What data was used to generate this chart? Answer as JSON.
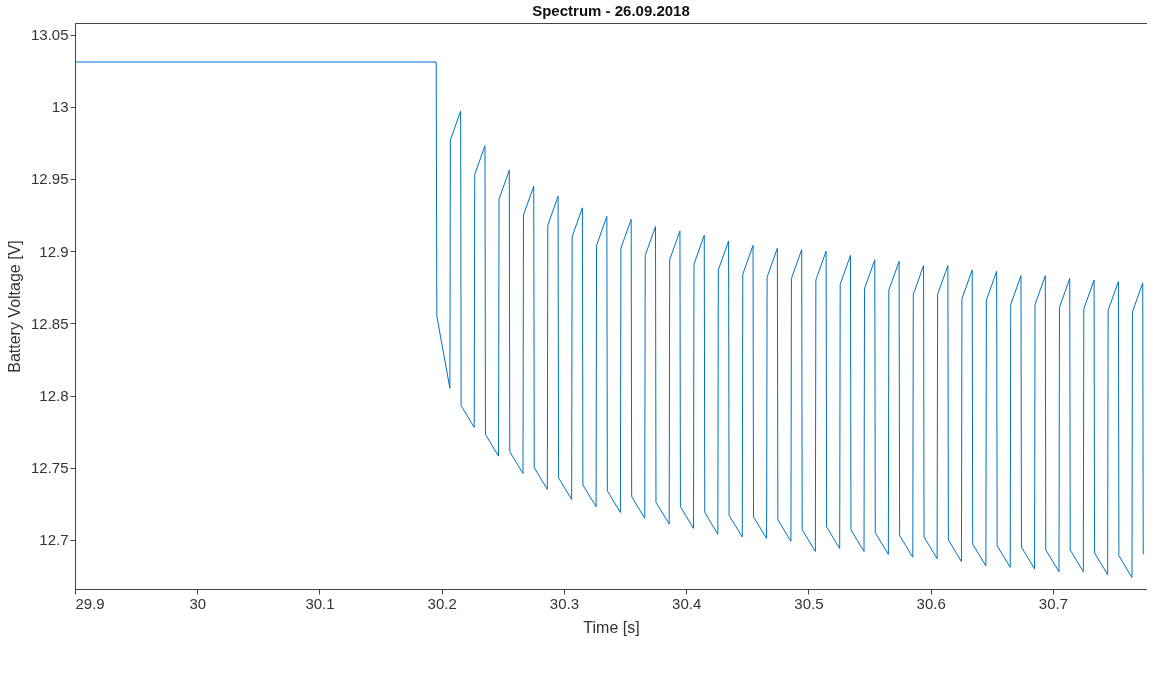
{
  "chart_data": {
    "type": "line",
    "title": "Spectrum  -  26.09.2018",
    "xlabel": "Time [s]",
    "ylabel": "Battery Voltage [V]",
    "xlim": [
      29.9,
      30.777
    ],
    "ylim": [
      12.666,
      13.058
    ],
    "xticks": [
      29.9,
      30,
      30.1,
      30.2,
      30.3,
      30.4,
      30.5,
      30.6,
      30.7
    ],
    "yticks": [
      12.7,
      12.75,
      12.8,
      12.85,
      12.9,
      12.95,
      13,
      13.05
    ],
    "series": [
      {
        "color": "#0072bd",
        "x": [
          29.9,
          30.0,
          30.1,
          30.19,
          30.1955,
          30.196,
          30.2067,
          30.2071,
          30.2155,
          30.2159,
          30.2266,
          30.227,
          30.2354,
          30.2358,
          30.2465,
          30.2469,
          30.2553,
          30.2557,
          30.2665,
          30.2669,
          30.2753,
          30.2757,
          30.2864,
          30.2868,
          30.2952,
          30.2956,
          30.3063,
          30.3067,
          30.3151,
          30.3155,
          30.3263,
          30.3267,
          30.3351,
          30.3355,
          30.3462,
          30.3466,
          30.355,
          30.3554,
          30.3661,
          30.3665,
          30.3749,
          30.3753,
          30.3861,
          30.3865,
          30.3949,
          30.3953,
          30.406,
          30.4064,
          30.4148,
          30.4152,
          30.4259,
          30.4263,
          30.4347,
          30.4351,
          30.4459,
          30.4463,
          30.4547,
          30.4551,
          30.4658,
          30.4662,
          30.4746,
          30.475,
          30.4857,
          30.4861,
          30.4945,
          30.4949,
          30.5057,
          30.5061,
          30.5145,
          30.5149,
          30.5256,
          30.526,
          30.5344,
          30.5348,
          30.5455,
          30.5459,
          30.5543,
          30.5547,
          30.5654,
          30.5658,
          30.5742,
          30.5746,
          30.5854,
          30.5858,
          30.5942,
          30.5946,
          30.6053,
          30.6057,
          30.6141,
          30.6145,
          30.6252,
          30.6256,
          30.634,
          30.6344,
          30.6452,
          30.6456,
          30.654,
          30.6544,
          30.6651,
          30.6655,
          30.6739,
          30.6743,
          30.685,
          30.6854,
          30.6938,
          30.6942,
          30.705,
          30.7054,
          30.7138,
          30.7142,
          30.7249,
          30.7253,
          30.7337,
          30.7341,
          30.7448,
          30.7452,
          30.7536,
          30.754,
          30.7647,
          30.7651,
          30.7735,
          30.7739
        ],
        "values": [
          13.031,
          13.031,
          13.031,
          13.031,
          13.031,
          12.855,
          12.805,
          12.977,
          12.997,
          12.793,
          12.778,
          12.953,
          12.973,
          12.773,
          12.758,
          12.936,
          12.956,
          12.761,
          12.746,
          12.925,
          12.945,
          12.75,
          12.735,
          12.918,
          12.938,
          12.743,
          12.728,
          12.91,
          12.93,
          12.738,
          12.723,
          12.904,
          12.924,
          12.734,
          12.719,
          12.902,
          12.922,
          12.73,
          12.715,
          12.897,
          12.917,
          12.726,
          12.711,
          12.894,
          12.914,
          12.723,
          12.708,
          12.891,
          12.911,
          12.719,
          12.704,
          12.887,
          12.907,
          12.717,
          12.702,
          12.884,
          12.904,
          12.716,
          12.701,
          12.882,
          12.902,
          12.714,
          12.699,
          12.881,
          12.901,
          12.707,
          12.692,
          12.88,
          12.9,
          12.709,
          12.694,
          12.877,
          12.897,
          12.707,
          12.692,
          12.874,
          12.894,
          12.705,
          12.69,
          12.873,
          12.893,
          12.703,
          12.688,
          12.87,
          12.89,
          12.702,
          12.687,
          12.87,
          12.89,
          12.7,
          12.685,
          12.867,
          12.887,
          12.697,
          12.682,
          12.866,
          12.886,
          12.696,
          12.681,
          12.863,
          12.883,
          12.695,
          12.68,
          12.863,
          12.883,
          12.693,
          12.678,
          12.861,
          12.881,
          12.693,
          12.678,
          12.86,
          12.88,
          12.691,
          12.676,
          12.859,
          12.879,
          12.689,
          12.674,
          12.858,
          12.878,
          12.69
        ]
      }
    ]
  }
}
